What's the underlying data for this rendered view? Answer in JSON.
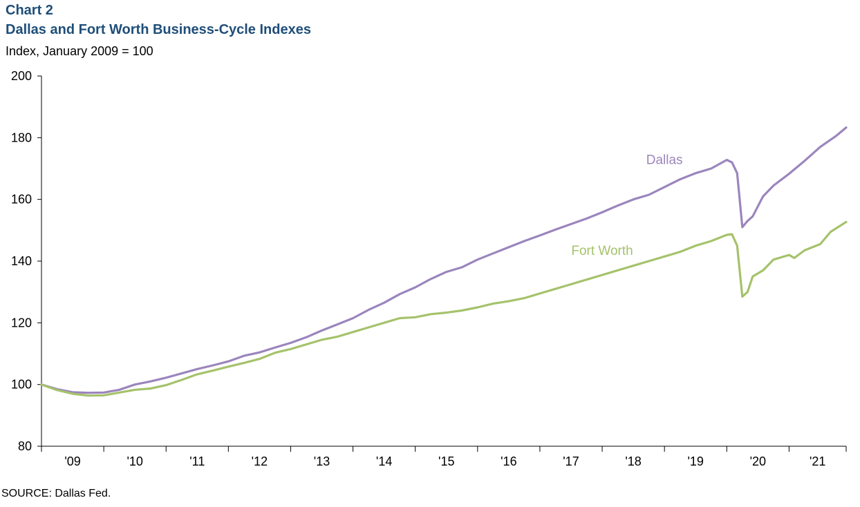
{
  "header": {
    "chart_label": "Chart 2",
    "title": "Dallas and Fort Worth Business-Cycle Indexes",
    "ylabel": "Index, January 2009 = 100"
  },
  "footer": {
    "source": "SOURCE: Dallas Fed."
  },
  "chart_data": {
    "type": "line",
    "title": "Dallas and Fort Worth Business-Cycle Indexes",
    "ylabel": "Index, January 2009 = 100",
    "xlabel": "",
    "ylim": [
      80,
      200
    ],
    "yticks": [
      80,
      100,
      120,
      140,
      160,
      180,
      200
    ],
    "xlim": [
      "2009-01",
      "2021-12"
    ],
    "x_tick_labels": [
      "'09",
      "'10",
      "'11",
      "'12",
      "'13",
      "'14",
      "'15",
      "'16",
      "'17",
      "'18",
      "'19",
      "'20",
      "'21"
    ],
    "grid": false,
    "legend": "inline labels",
    "series": [
      {
        "name": "Dallas",
        "color": "#9b85bd",
        "points": [
          [
            "2009-01",
            100
          ],
          [
            "2009-04",
            98.5
          ],
          [
            "2009-07",
            97.5
          ],
          [
            "2009-10",
            97.3
          ],
          [
            "2010-01",
            97.4
          ],
          [
            "2010-04",
            98.3
          ],
          [
            "2010-07",
            100.0
          ],
          [
            "2010-10",
            101.0
          ],
          [
            "2011-01",
            102.2
          ],
          [
            "2011-04",
            103.6
          ],
          [
            "2011-07",
            105.0
          ],
          [
            "2011-10",
            106.2
          ],
          [
            "2012-01",
            107.5
          ],
          [
            "2012-04",
            109.3
          ],
          [
            "2012-07",
            110.4
          ],
          [
            "2012-10",
            112.0
          ],
          [
            "2013-01",
            113.5
          ],
          [
            "2013-04",
            115.3
          ],
          [
            "2013-07",
            117.5
          ],
          [
            "2013-10",
            119.5
          ],
          [
            "2014-01",
            121.5
          ],
          [
            "2014-04",
            124.2
          ],
          [
            "2014-07",
            126.5
          ],
          [
            "2014-10",
            129.3
          ],
          [
            "2015-01",
            131.5
          ],
          [
            "2015-04",
            134.2
          ],
          [
            "2015-07",
            136.5
          ],
          [
            "2015-10",
            138.0
          ],
          [
            "2016-01",
            140.5
          ],
          [
            "2016-04",
            142.5
          ],
          [
            "2016-07",
            144.5
          ],
          [
            "2016-10",
            146.5
          ],
          [
            "2017-01",
            148.3
          ],
          [
            "2017-04",
            150.2
          ],
          [
            "2017-07",
            152.0
          ],
          [
            "2017-10",
            153.8
          ],
          [
            "2018-01",
            155.8
          ],
          [
            "2018-04",
            158.0
          ],
          [
            "2018-07",
            160.0
          ],
          [
            "2018-10",
            161.5
          ],
          [
            "2019-01",
            164.0
          ],
          [
            "2019-04",
            166.5
          ],
          [
            "2019-07",
            168.5
          ],
          [
            "2019-10",
            170.0
          ],
          [
            "2020-01",
            172.8
          ],
          [
            "2020-02",
            172.0
          ],
          [
            "2020-03",
            168.5
          ],
          [
            "2020-04",
            151.0
          ],
          [
            "2020-05",
            153.0
          ],
          [
            "2020-06",
            154.5
          ],
          [
            "2020-08",
            161.0
          ],
          [
            "2020-10",
            164.5
          ],
          [
            "2021-01",
            168.3
          ],
          [
            "2021-04",
            172.5
          ],
          [
            "2021-07",
            177.0
          ],
          [
            "2021-10",
            180.5
          ],
          [
            "2021-12",
            183.3
          ]
        ]
      },
      {
        "name": "Fort Worth",
        "color": "#a5c26b",
        "points": [
          [
            "2009-01",
            100
          ],
          [
            "2009-04",
            98.2
          ],
          [
            "2009-07",
            97.0
          ],
          [
            "2009-10",
            96.4
          ],
          [
            "2010-01",
            96.5
          ],
          [
            "2010-04",
            97.4
          ],
          [
            "2010-07",
            98.3
          ],
          [
            "2010-10",
            98.7
          ],
          [
            "2011-01",
            99.8
          ],
          [
            "2011-04",
            101.5
          ],
          [
            "2011-07",
            103.3
          ],
          [
            "2011-10",
            104.5
          ],
          [
            "2012-01",
            105.8
          ],
          [
            "2012-04",
            107.0
          ],
          [
            "2012-07",
            108.3
          ],
          [
            "2012-10",
            110.3
          ],
          [
            "2013-01",
            111.5
          ],
          [
            "2013-04",
            113.0
          ],
          [
            "2013-07",
            114.5
          ],
          [
            "2013-10",
            115.5
          ],
          [
            "2014-01",
            117.0
          ],
          [
            "2014-04",
            118.5
          ],
          [
            "2014-07",
            120.0
          ],
          [
            "2014-10",
            121.5
          ],
          [
            "2015-01",
            121.8
          ],
          [
            "2015-04",
            122.8
          ],
          [
            "2015-07",
            123.3
          ],
          [
            "2015-10",
            124.0
          ],
          [
            "2016-01",
            125.0
          ],
          [
            "2016-04",
            126.2
          ],
          [
            "2016-07",
            127.0
          ],
          [
            "2016-10",
            128.0
          ],
          [
            "2017-01",
            129.5
          ],
          [
            "2017-04",
            131.0
          ],
          [
            "2017-07",
            132.5
          ],
          [
            "2017-10",
            134.0
          ],
          [
            "2018-01",
            135.5
          ],
          [
            "2018-04",
            137.0
          ],
          [
            "2018-07",
            138.5
          ],
          [
            "2018-10",
            140.0
          ],
          [
            "2019-01",
            141.5
          ],
          [
            "2019-04",
            143.0
          ],
          [
            "2019-07",
            145.0
          ],
          [
            "2019-10",
            146.5
          ],
          [
            "2020-01",
            148.5
          ],
          [
            "2020-02",
            148.7
          ],
          [
            "2020-03",
            145.0
          ],
          [
            "2020-04",
            128.5
          ],
          [
            "2020-05",
            130.0
          ],
          [
            "2020-06",
            135.0
          ],
          [
            "2020-08",
            137.0
          ],
          [
            "2020-10",
            140.5
          ],
          [
            "2021-01",
            142.0
          ],
          [
            "2021-02",
            141.0
          ],
          [
            "2021-04",
            143.5
          ],
          [
            "2021-07",
            145.5
          ],
          [
            "2021-09",
            149.5
          ],
          [
            "2021-12",
            152.7
          ]
        ]
      }
    ],
    "annotations": [
      {
        "text": "Dallas",
        "series": "Dallas",
        "at": [
          "2019-01",
          171.5
        ]
      },
      {
        "text": "Fort Worth",
        "series": "Fort Worth",
        "at": [
          "2018-01",
          142.0
        ]
      }
    ]
  }
}
